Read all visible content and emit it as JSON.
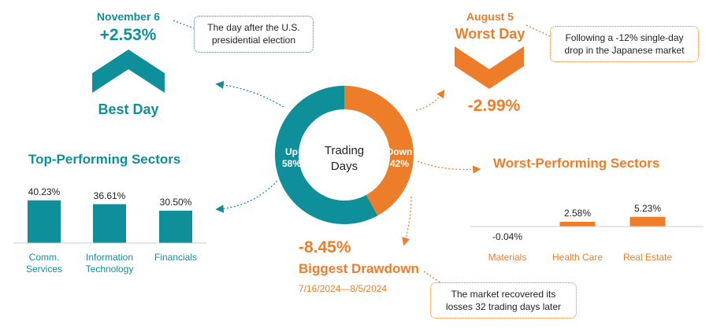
{
  "colors": {
    "teal": "#0f8f9a",
    "orange": "#ee7d2a"
  },
  "best_day": {
    "date": "November 6",
    "value": "+2.53%",
    "label": "Best Day",
    "note": "The day after the U.S. presidential election",
    "note_line1": "The day after the U.S.",
    "note_line2": "presidential election",
    "icon": "chevron-up-icon"
  },
  "worst_day": {
    "date": "August 5",
    "value": "-2.99%",
    "label": "Worst Day",
    "note_line1": "Following a -12% single-day",
    "note_line2": "drop in the Japanese market",
    "icon": "chevron-down-icon"
  },
  "drawdown": {
    "value": "-8.45%",
    "label": "Biggest Drawdown",
    "dates": "7/16/2024—8/5/2024",
    "note_line1": "The market recovered its",
    "note_line2": "losses 32 trading days later"
  },
  "donut": {
    "center_line1": "Trading",
    "center_line2": "Days",
    "up_label": "Up",
    "up_pct": "58%",
    "down_label": "Down",
    "down_pct": "42%"
  },
  "top_sectors": {
    "title": "Top-Performing Sectors"
  },
  "worst_sectors": {
    "title": "Worst-Performing Sectors"
  },
  "chart_data": [
    {
      "type": "pie",
      "categories": [
        "Up",
        "Down"
      ],
      "values": [
        58,
        42
      ],
      "center_label": "Trading Days"
    },
    {
      "type": "bar",
      "title": "Top-Performing Sectors",
      "categories": [
        "Comm. Services",
        "Information Technology",
        "Financials"
      ],
      "category_lines": [
        [
          "Comm.",
          "Services"
        ],
        [
          "Information",
          "Technology"
        ],
        [
          "Financials"
        ]
      ],
      "values": [
        40.23,
        36.61,
        30.5
      ],
      "value_labels": [
        "40.23%",
        "36.61%",
        "30.50%"
      ]
    },
    {
      "type": "bar",
      "title": "Worst-Performing Sectors",
      "categories": [
        "Materials",
        "Health Care",
        "Real Estate"
      ],
      "values": [
        -0.04,
        2.58,
        5.23
      ],
      "value_labels": [
        "-0.04%",
        "2.58%",
        "5.23%"
      ]
    }
  ]
}
